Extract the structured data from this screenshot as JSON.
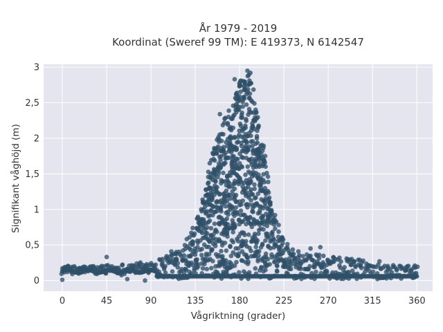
{
  "chart_data": {
    "type": "scatter",
    "title_lines": [
      "År 1979 - 2019",
      "Koordinat (Sweref 99 TM): E 419373, N 6142547"
    ],
    "xlabel": "Vågriktning (grader)",
    "ylabel": "Signifikant våghöjd (m)",
    "xlim": [
      -19,
      376
    ],
    "ylim": [
      -0.15,
      3.04
    ],
    "x_ticks": [
      0,
      45,
      90,
      135,
      180,
      225,
      270,
      315,
      360
    ],
    "x_tick_labels": [
      "0",
      "45",
      "90",
      "135",
      "180",
      "225",
      "270",
      "315",
      "360"
    ],
    "y_ticks": [
      0,
      0.5,
      1,
      1.5,
      2,
      2.5,
      3
    ],
    "y_tick_labels": [
      "0",
      "0,5",
      "1",
      "1,5",
      "2",
      "2,5",
      "3"
    ],
    "grid": true,
    "background_color": "#e5e5ef",
    "marker_color": "#2e5068",
    "series": [
      {
        "envelope_upper": [
          [
            0,
            0.21
          ],
          [
            20,
            0.2
          ],
          [
            45,
            0.22
          ],
          [
            70,
            0.24
          ],
          [
            90,
            0.28
          ],
          [
            100,
            0.33
          ],
          [
            110,
            0.4
          ],
          [
            120,
            0.5
          ],
          [
            130,
            0.68
          ],
          [
            140,
            1.0
          ],
          [
            145,
            1.3
          ],
          [
            150,
            1.65
          ],
          [
            155,
            1.9
          ],
          [
            160,
            2.15
          ],
          [
            165,
            2.3
          ],
          [
            170,
            2.4
          ],
          [
            175,
            2.55
          ],
          [
            180,
            2.78
          ],
          [
            183,
            2.85
          ],
          [
            186,
            2.9
          ],
          [
            189,
            2.92
          ],
          [
            192,
            2.85
          ],
          [
            195,
            2.6
          ],
          [
            200,
            2.2
          ],
          [
            205,
            1.85
          ],
          [
            210,
            1.3
          ],
          [
            215,
            0.95
          ],
          [
            220,
            0.75
          ],
          [
            225,
            0.6
          ],
          [
            230,
            0.48
          ],
          [
            240,
            0.42
          ],
          [
            250,
            0.38
          ],
          [
            270,
            0.35
          ],
          [
            290,
            0.32
          ],
          [
            315,
            0.26
          ],
          [
            340,
            0.22
          ],
          [
            360,
            0.21
          ]
        ],
        "envelope_lower": [
          [
            0,
            0.09
          ],
          [
            45,
            0.1
          ],
          [
            90,
            0.1
          ],
          [
            100,
            0.02
          ],
          [
            360,
            0.05
          ]
        ],
        "notable_points": [
          [
            0,
            0.01
          ],
          [
            45,
            0.33
          ],
          [
            66,
            0.02
          ],
          [
            84,
            0.0
          ],
          [
            160,
            2.34
          ],
          [
            175,
            2.83
          ],
          [
            188,
            2.95
          ],
          [
            191,
            2.92
          ],
          [
            216,
            0.92
          ],
          [
            252,
            0.45
          ],
          [
            262,
            0.47
          ],
          [
            293,
            0.22
          ],
          [
            302,
            0.29
          ],
          [
            322,
            0.27
          ],
          [
            358,
            0.21
          ]
        ]
      }
    ]
  }
}
